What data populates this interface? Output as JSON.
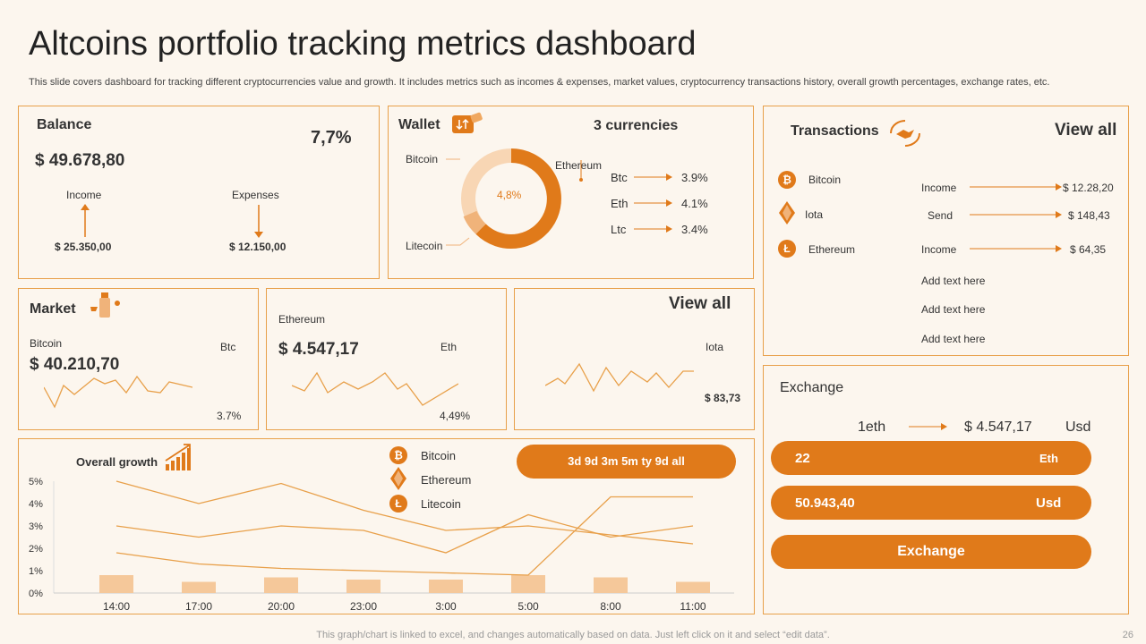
{
  "header": {
    "title": "Altcoins portfolio tracking metrics dashboard",
    "subtitle": "This slide covers dashboard for tracking different cryptocurrencies value and growth. It includes metrics such as incomes & expenses, market values, cryptocurrency transactions history, overall growth percentages, exchange rates, etc."
  },
  "balance": {
    "title": "Balance",
    "percent": "7,7%",
    "amount": "$ 49.678,80",
    "income_label": "Income",
    "expenses_label": "Expenses",
    "income_value": "$ 25.350,00",
    "expenses_value": "$ 12.150,00"
  },
  "wallet": {
    "title": "Wallet",
    "currencies_label": "3 currencies",
    "donut_center": "4,8%",
    "donut_labels": [
      "Bitcoin",
      "Ethereum",
      "Litecoin"
    ],
    "rates": [
      {
        "coin": "Btc",
        "value": "3.9%"
      },
      {
        "coin": "Eth",
        "value": "4.1%"
      },
      {
        "coin": "Ltc",
        "value": "3.4%"
      }
    ]
  },
  "transactions": {
    "title": "Transactions",
    "view_all": "View all",
    "coins": [
      "Bitcoin",
      "Iota",
      "Ethereum"
    ],
    "rows": [
      {
        "type": "Income",
        "value": "$ 12.28,20"
      },
      {
        "type": "Send",
        "value": "$ 148,43"
      },
      {
        "type": "Income",
        "value": "$ 64,35"
      }
    ],
    "placeholders": [
      "Add text here",
      "Add text here",
      "Add text here"
    ]
  },
  "market": {
    "title": "Market",
    "coin": "Bitcoin",
    "amount": "$ 40.210,70",
    "ticker": "Btc",
    "change": "3.7%"
  },
  "eth_card": {
    "coin": "Ethereum",
    "amount": "$ 4.547,17",
    "ticker": "Eth",
    "change": "4,49%"
  },
  "iota_card": {
    "view_all": "View all",
    "ticker": "Iota",
    "amount": "$ 83,73"
  },
  "exchange": {
    "title": "Exchange",
    "from": "1eth",
    "to_amount": "$ 4.547,17",
    "to_currency": "Usd",
    "field1_value": "22",
    "field1_unit": "Eth",
    "field2_value": "50.943,40",
    "field2_unit": "Usd",
    "button": "Exchange"
  },
  "growth": {
    "title": "Overall growth",
    "range_tabs": "3d 9d 3m 5m ty 9d all",
    "legend": [
      "Bitcoin",
      "Ethereum",
      "Litecoin"
    ]
  },
  "chart_data": {
    "type": "line",
    "categories": [
      "14:00",
      "17:00",
      "20:00",
      "23:00",
      "3:00",
      "5:00",
      "8:00",
      "11:00"
    ],
    "yticks": [
      "0%",
      "1%",
      "2%",
      "3%",
      "4%",
      "5%"
    ],
    "ylim": [
      0,
      5
    ],
    "series": [
      {
        "name": "Bitcoin",
        "values": [
          5.0,
          4.0,
          4.9,
          3.7,
          2.8,
          3.0,
          2.6,
          2.2
        ]
      },
      {
        "name": "Ethereum",
        "values": [
          3.0,
          2.5,
          3.0,
          2.8,
          1.8,
          3.5,
          2.5,
          3.0
        ]
      },
      {
        "name": "Litecoin",
        "values": [
          1.8,
          1.3,
          1.1,
          1.0,
          0.9,
          0.8,
          4.3,
          4.3
        ]
      }
    ],
    "bars": [
      0.8,
      0.5,
      0.7,
      0.6,
      0.6,
      0.8,
      0.7,
      0.5
    ]
  },
  "footer": {
    "note": "This graph/chart is linked to excel,  and changes automatically based on data. Just left click on it and select “edit data”.",
    "page": "26"
  },
  "colors": {
    "accent": "#e07a1a",
    "panel_border": "#e8a04a",
    "background": "#fcf6ee"
  }
}
